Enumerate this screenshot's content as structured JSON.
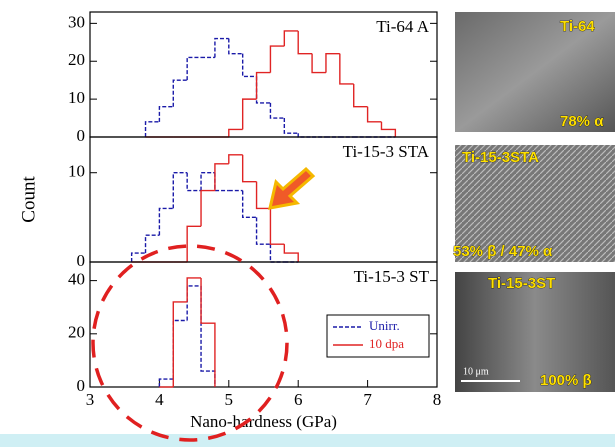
{
  "chart_data": [
    {
      "type": "histogram",
      "title": "Ti-64 A",
      "bins": [
        3.8,
        4.0,
        4.2,
        4.4,
        4.6,
        4.8,
        5.0,
        5.2,
        5.4,
        5.6,
        5.8,
        6.0,
        6.2,
        6.4,
        6.6,
        6.8,
        7.0,
        7.2,
        7.4
      ],
      "series": [
        {
          "name": "Unirr.",
          "color": "#1a1aa8",
          "values": [
            4,
            8,
            15,
            21,
            21,
            26,
            22,
            16,
            9,
            5,
            1,
            0,
            0,
            0,
            0,
            0,
            0,
            0
          ]
        },
        {
          "name": "10 dpa",
          "color": "#e02424",
          "values": [
            0,
            0,
            0,
            0,
            0,
            0,
            2,
            10,
            17,
            24,
            28,
            22,
            17,
            22,
            14,
            8,
            4,
            2
          ]
        }
      ],
      "xlim": [
        3,
        8
      ],
      "ylim": [
        0,
        33
      ],
      "yticks": [
        0,
        10,
        20,
        30
      ]
    },
    {
      "type": "histogram",
      "title": "Ti-15-3 STA",
      "ylabel": "Count",
      "bins": [
        3.6,
        3.8,
        4.0,
        4.2,
        4.4,
        4.6,
        4.8,
        5.0,
        5.2,
        5.4,
        5.6,
        5.8,
        6.0
      ],
      "series": [
        {
          "name": "Unirr.",
          "color": "#1a1aa8",
          "values": [
            1,
            3,
            6,
            10,
            8,
            10,
            8,
            8,
            5,
            2,
            0,
            0
          ]
        },
        {
          "name": "10 dpa",
          "color": "#e02424",
          "values": [
            0,
            0,
            0,
            0,
            4,
            8,
            11,
            12,
            9,
            6,
            2,
            1
          ]
        }
      ],
      "xlim": [
        3,
        8
      ],
      "ylim": [
        0,
        14
      ],
      "yticks": [
        0,
        10
      ]
    },
    {
      "type": "histogram",
      "title": "Ti-15-3 ST",
      "xlabel": "Nano-hardness (GPa)",
      "bins": [
        4.0,
        4.2,
        4.4,
        4.6,
        4.8
      ],
      "series": [
        {
          "name": "Unirr.",
          "color": "#1a1aa8",
          "values": [
            3,
            25,
            38,
            6
          ]
        },
        {
          "name": "10 dpa",
          "color": "#e02424",
          "values": [
            0,
            32,
            41,
            24
          ]
        }
      ],
      "xlim": [
        3,
        8
      ],
      "ylim": [
        0,
        47
      ],
      "xticks": [
        3,
        4,
        5,
        6,
        7,
        8
      ],
      "yticks": [
        0,
        20,
        40
      ],
      "legend": "lower right"
    }
  ],
  "micrographs": [
    {
      "label": "Ti-64",
      "caption": "78% α"
    },
    {
      "label": "Ti-15-3STA",
      "caption": "53% β / 47% α"
    },
    {
      "label": "Ti-15-3ST",
      "caption": "100% β",
      "scale": "10 μm"
    }
  ]
}
